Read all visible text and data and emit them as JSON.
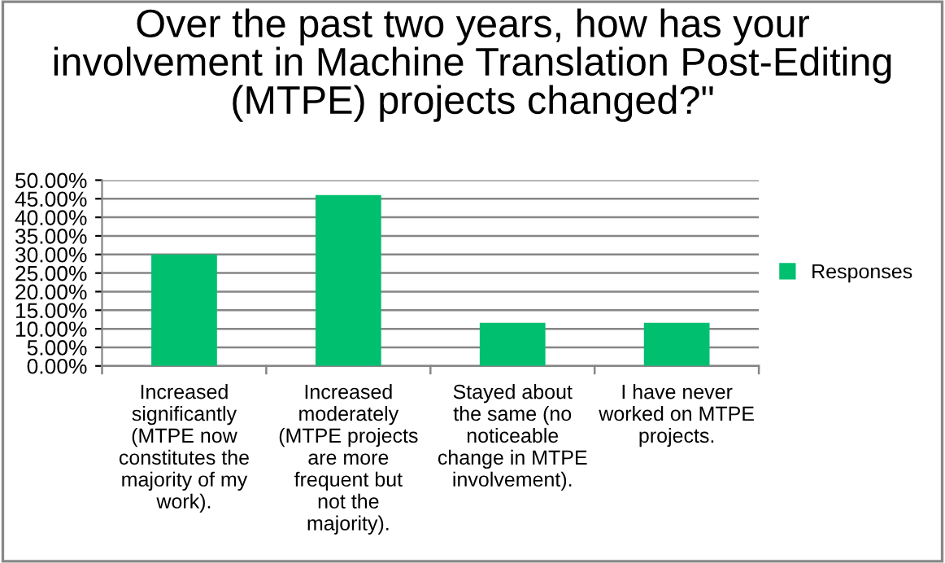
{
  "chart_data": {
    "type": "bar",
    "title": "Over the past two years, how has your involvement in Machine Translation Post-Editing (MTPE) projects changed?\"",
    "categories": [
      "Increased significantly (MTPE now constitutes the majority of my work).",
      "Increased moderately (MTPE projects are more frequent but not the majority).",
      "Stayed about the same (no noticeable change in MTPE involvement).",
      "I have never worked on MTPE projects."
    ],
    "series": [
      {
        "name": "Responses",
        "color": "#00c070",
        "values": [
          30.0,
          46.0,
          11.6,
          11.6
        ]
      }
    ],
    "ylim": [
      0,
      50
    ],
    "yticks": [
      {
        "value": 0,
        "label": "0.00%"
      },
      {
        "value": 5,
        "label": "5.00%"
      },
      {
        "value": 10,
        "label": "10.00%"
      },
      {
        "value": 15,
        "label": "15.00%"
      },
      {
        "value": 20,
        "label": "20.00%"
      },
      {
        "value": 25,
        "label": "25.00%"
      },
      {
        "value": 30,
        "label": "30.00%"
      },
      {
        "value": 35,
        "label": "35.00%"
      },
      {
        "value": 40,
        "label": "40.00%"
      },
      {
        "value": 45,
        "label": "45.00%"
      },
      {
        "value": 50,
        "label": "50.00%"
      }
    ],
    "grid": "y",
    "legend": "right"
  }
}
